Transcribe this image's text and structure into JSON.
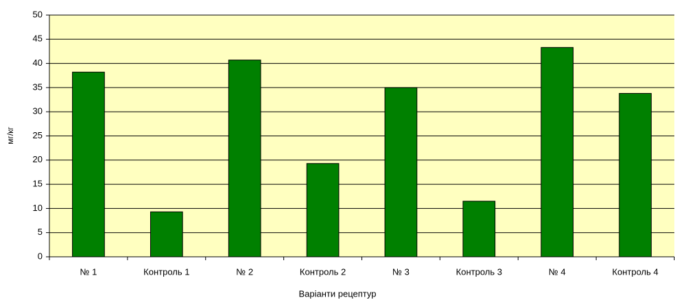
{
  "chart_data": {
    "type": "bar",
    "x_label": "Варіанти рецептур",
    "y_label": "мг/кг",
    "categories": [
      "№ 1",
      "Контроль 1",
      "№ 2",
      "Контроль 2",
      "№ 3",
      "Контроль 3",
      "№ 4",
      "Контроль 4"
    ],
    "values": [
      38.2,
      9.3,
      40.7,
      19.3,
      35,
      11.5,
      43.3,
      33.8
    ],
    "color": "#008000",
    "ylim": [
      0,
      50
    ],
    "yticks": [
      0,
      5,
      10,
      15,
      20,
      25,
      30,
      35,
      40,
      45,
      50
    ],
    "grid": true
  }
}
